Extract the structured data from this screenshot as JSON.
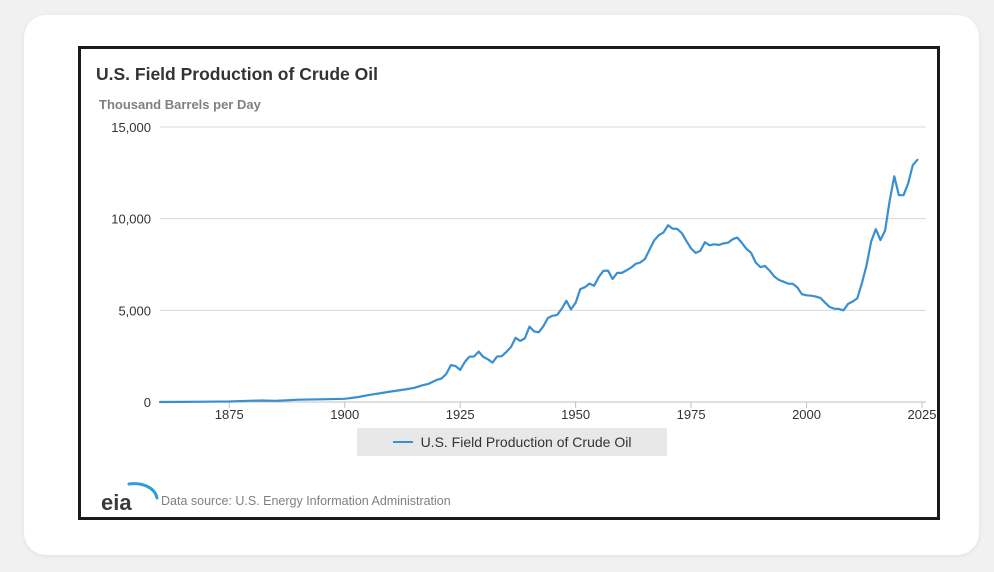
{
  "source_text": "Data source: U.S. Energy Information Administration",
  "logo_text": "eia",
  "chart_data": {
    "type": "line",
    "title": "U.S. Field Production of Crude Oil",
    "ylabel": "Thousand Barrels per Day",
    "xlabel": "",
    "xlim": [
      1860,
      2025
    ],
    "ylim": [
      0,
      15000
    ],
    "x_ticks": [
      1875,
      1900,
      1925,
      1950,
      1975,
      2000,
      2025
    ],
    "y_ticks": [
      0,
      5000,
      10000,
      15000
    ],
    "y_tick_labels": [
      "0",
      "5,000",
      "10,000",
      "15,000"
    ],
    "grid": true,
    "legend_position": "bottom",
    "colors": {
      "line": "#3a8fd0",
      "grid": "#d8d8d8",
      "text": "#333333"
    },
    "series": [
      {
        "name": "U.S. Field Production of Crude Oil",
        "x": [
          1860,
          1865,
          1870,
          1875,
          1880,
          1882,
          1885,
          1890,
          1895,
          1900,
          1903,
          1905,
          1908,
          1910,
          1913,
          1915,
          1917,
          1918,
          1920,
          1921,
          1922,
          1923,
          1924,
          1925,
          1926,
          1927,
          1928,
          1929,
          1930,
          1931,
          1932,
          1933,
          1934,
          1935,
          1936,
          1937,
          1938,
          1939,
          1940,
          1941,
          1942,
          1943,
          1944,
          1945,
          1946,
          1947,
          1948,
          1949,
          1950,
          1951,
          1952,
          1953,
          1954,
          1955,
          1956,
          1957,
          1958,
          1959,
          1960,
          1961,
          1962,
          1963,
          1964,
          1965,
          1966,
          1967,
          1968,
          1969,
          1970,
          1971,
          1972,
          1973,
          1974,
          1975,
          1976,
          1977,
          1978,
          1979,
          1980,
          1981,
          1982,
          1983,
          1984,
          1985,
          1986,
          1987,
          1988,
          1989,
          1990,
          1991,
          1992,
          1993,
          1994,
          1995,
          1996,
          1997,
          1998,
          1999,
          2000,
          2001,
          2002,
          2003,
          2004,
          2005,
          2006,
          2007,
          2008,
          2009,
          2010,
          2011,
          2012,
          2013,
          2014,
          2015,
          2016,
          2017,
          2018,
          2019,
          2020,
          2021,
          2022,
          2023,
          2024
        ],
        "values": [
          1,
          5,
          14,
          26,
          72,
          83,
          60,
          125,
          145,
          175,
          275,
          370,
          490,
          575,
          680,
          770,
          920,
          975,
          1210,
          1290,
          1530,
          2010,
          1960,
          1750,
          2180,
          2470,
          2480,
          2750,
          2460,
          2330,
          2150,
          2480,
          2500,
          2730,
          3000,
          3500,
          3330,
          3470,
          4110,
          3850,
          3800,
          4130,
          4580,
          4700,
          4750,
          5090,
          5520,
          5050,
          5410,
          6160,
          6260,
          6460,
          6340,
          6810,
          7150,
          7170,
          6710,
          7050,
          7040,
          7180,
          7330,
          7540,
          7610,
          7800,
          8300,
          8810,
          9100,
          9240,
          9640,
          9460,
          9440,
          9210,
          8770,
          8370,
          8130,
          8240,
          8710,
          8550,
          8600,
          8570,
          8650,
          8690,
          8880,
          8970,
          8680,
          8350,
          8140,
          7610,
          7360,
          7420,
          7170,
          6850,
          6660,
          6560,
          6460,
          6450,
          6250,
          5880,
          5820,
          5800,
          5750,
          5680,
          5420,
          5180,
          5090,
          5080,
          5000,
          5350,
          5480,
          5650,
          6500,
          7470,
          8760,
          9430,
          8830,
          9350,
          10990,
          12310,
          11280,
          11280,
          11910,
          12920,
          13210
        ]
      }
    ]
  }
}
